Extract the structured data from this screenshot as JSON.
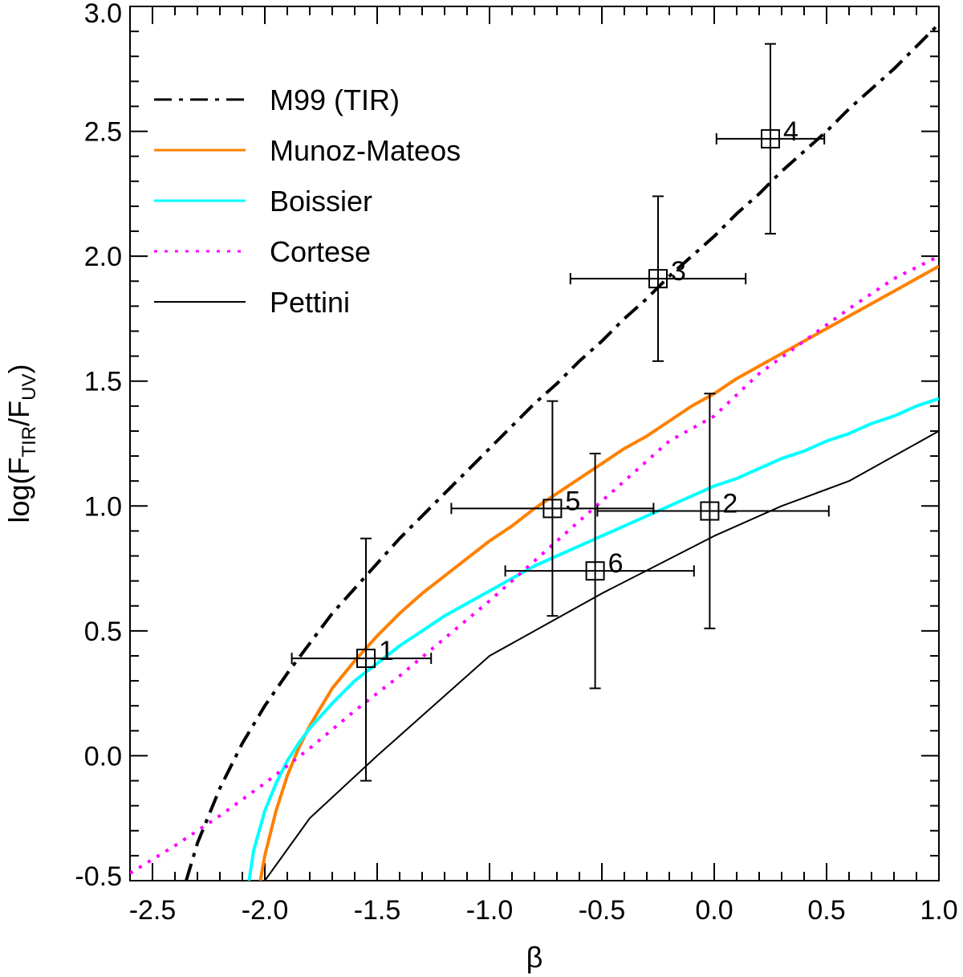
{
  "chart_data": {
    "type": "line",
    "xlabel": "β",
    "ylabel": {
      "base": "log(F",
      "sub1": "TIR",
      "mid": "/F",
      "sub2": "UV",
      "end": ")"
    },
    "xlim": [
      -2.6,
      1.0
    ],
    "ylim": [
      -0.5,
      3.0
    ],
    "xticks": [
      -2.5,
      -2.0,
      -1.5,
      -1.0,
      -0.5,
      0.0,
      0.5,
      1.0
    ],
    "xtick_labels": [
      "-2.5",
      "-2.0",
      "-1.5",
      "-1.0",
      "-0.5",
      "0.0",
      "0.5",
      "1.0"
    ],
    "yticks": [
      -0.5,
      0.0,
      0.5,
      1.0,
      1.5,
      2.0,
      2.5,
      3.0
    ],
    "ytick_labels": [
      "-0.5",
      "0.0",
      "0.5",
      "1.0",
      "1.5",
      "2.0",
      "2.5",
      "3.0"
    ],
    "legend_position": "top-left",
    "series": [
      {
        "name": "M99 (TIR)",
        "color": "#000000",
        "style": "dashdot",
        "x": [
          -2.35,
          -2.3,
          -2.2,
          -2.1,
          -2.0,
          -1.9,
          -1.8,
          -1.7,
          -1.6,
          -1.5,
          -1.4,
          -1.3,
          -1.2,
          -1.1,
          -1.0,
          -0.9,
          -0.8,
          -0.7,
          -0.6,
          -0.5,
          -0.4,
          -0.3,
          -0.2,
          -0.1,
          0.0,
          0.1,
          0.2,
          0.3,
          0.4,
          0.5,
          0.6,
          0.7,
          0.8,
          0.9,
          1.0
        ],
        "y": [
          -0.5,
          -0.35,
          -0.13,
          0.05,
          0.2,
          0.33,
          0.45,
          0.57,
          0.67,
          0.77,
          0.87,
          0.96,
          1.05,
          1.14,
          1.23,
          1.32,
          1.41,
          1.49,
          1.58,
          1.66,
          1.75,
          1.83,
          1.92,
          2.0,
          2.08,
          2.17,
          2.25,
          2.34,
          2.42,
          2.5,
          2.59,
          2.67,
          2.75,
          2.84,
          2.93
        ]
      },
      {
        "name": "Munoz-Mateos",
        "color": "#FF8000",
        "style": "solid",
        "x": [
          -2.02,
          -2.0,
          -1.95,
          -1.9,
          -1.85,
          -1.8,
          -1.7,
          -1.6,
          -1.5,
          -1.4,
          -1.3,
          -1.2,
          -1.1,
          -1.0,
          -0.9,
          -0.8,
          -0.7,
          -0.6,
          -0.5,
          -0.4,
          -0.3,
          -0.2,
          -0.1,
          0.0,
          0.1,
          0.2,
          0.3,
          0.4,
          0.5,
          0.6,
          0.7,
          0.8,
          0.9,
          1.0
        ],
        "y": [
          -0.5,
          -0.4,
          -0.22,
          -0.08,
          0.03,
          0.12,
          0.27,
          0.38,
          0.48,
          0.57,
          0.65,
          0.72,
          0.79,
          0.86,
          0.92,
          0.99,
          1.05,
          1.11,
          1.17,
          1.23,
          1.28,
          1.34,
          1.4,
          1.45,
          1.51,
          1.56,
          1.61,
          1.66,
          1.71,
          1.76,
          1.81,
          1.86,
          1.91,
          1.96
        ]
      },
      {
        "name": "Boissier",
        "color": "#00FFFF",
        "style": "solid",
        "x": [
          -2.07,
          -2.05,
          -2.0,
          -1.95,
          -1.9,
          -1.85,
          -1.8,
          -1.7,
          -1.6,
          -1.5,
          -1.4,
          -1.3,
          -1.2,
          -1.1,
          -1.0,
          -0.9,
          -0.8,
          -0.7,
          -0.6,
          -0.5,
          -0.4,
          -0.3,
          -0.2,
          -0.1,
          0.0,
          0.1,
          0.2,
          0.3,
          0.4,
          0.5,
          0.6,
          0.7,
          0.8,
          0.9,
          1.0
        ],
        "y": [
          -0.5,
          -0.38,
          -0.22,
          -0.11,
          -0.02,
          0.05,
          0.11,
          0.21,
          0.3,
          0.37,
          0.44,
          0.5,
          0.56,
          0.61,
          0.66,
          0.71,
          0.76,
          0.8,
          0.84,
          0.88,
          0.92,
          0.96,
          1.0,
          1.04,
          1.08,
          1.11,
          1.15,
          1.19,
          1.22,
          1.26,
          1.29,
          1.33,
          1.36,
          1.4,
          1.43
        ]
      },
      {
        "name": "Cortese",
        "color": "#FF00FF",
        "style": "dotted",
        "x": [
          -2.6,
          -2.4,
          -2.2,
          -2.0,
          -1.8,
          -1.6,
          -1.4,
          -1.2,
          -1.0,
          -0.8,
          -0.6,
          -0.4,
          -0.2,
          0.0,
          0.2,
          0.4,
          0.6,
          0.8,
          1.0
        ],
        "y": [
          -0.47,
          -0.36,
          -0.24,
          -0.11,
          0.03,
          0.18,
          0.32,
          0.47,
          0.62,
          0.78,
          0.94,
          1.1,
          1.26,
          1.36,
          1.53,
          1.66,
          1.79,
          1.91,
          2.0
        ]
      },
      {
        "name": "Pettini",
        "color": "#000000",
        "style": "solid-thin",
        "x": [
          -2.0,
          -1.8,
          -1.5,
          -1.0,
          -0.5,
          0.0,
          0.3,
          0.6,
          1.0
        ],
        "y": [
          -0.5,
          -0.25,
          0.0,
          0.4,
          0.65,
          0.88,
          1.0,
          1.1,
          1.3
        ]
      }
    ],
    "points": [
      {
        "label": "1",
        "x": -1.55,
        "y": 0.39,
        "xerr": [
          0.33,
          0.29
        ],
        "yerr": [
          0.49,
          0.48
        ]
      },
      {
        "label": "2",
        "x": -0.02,
        "y": 0.98,
        "xerr": [
          0.5,
          0.53
        ],
        "yerr": [
          0.47,
          0.47
        ]
      },
      {
        "label": "3",
        "x": -0.25,
        "y": 1.91,
        "xerr": [
          0.39,
          0.39
        ],
        "yerr": [
          0.33,
          0.33
        ]
      },
      {
        "label": "4",
        "x": 0.25,
        "y": 2.47,
        "xerr": [
          0.24,
          0.24
        ],
        "yerr": [
          0.38,
          0.38
        ]
      },
      {
        "label": "5",
        "x": -0.72,
        "y": 0.99,
        "xerr": [
          0.45,
          0.45
        ],
        "yerr": [
          0.43,
          0.43
        ]
      },
      {
        "label": "6",
        "x": -0.53,
        "y": 0.74,
        "xerr": [
          0.4,
          0.44
        ],
        "yerr": [
          0.47,
          0.47
        ]
      }
    ]
  }
}
